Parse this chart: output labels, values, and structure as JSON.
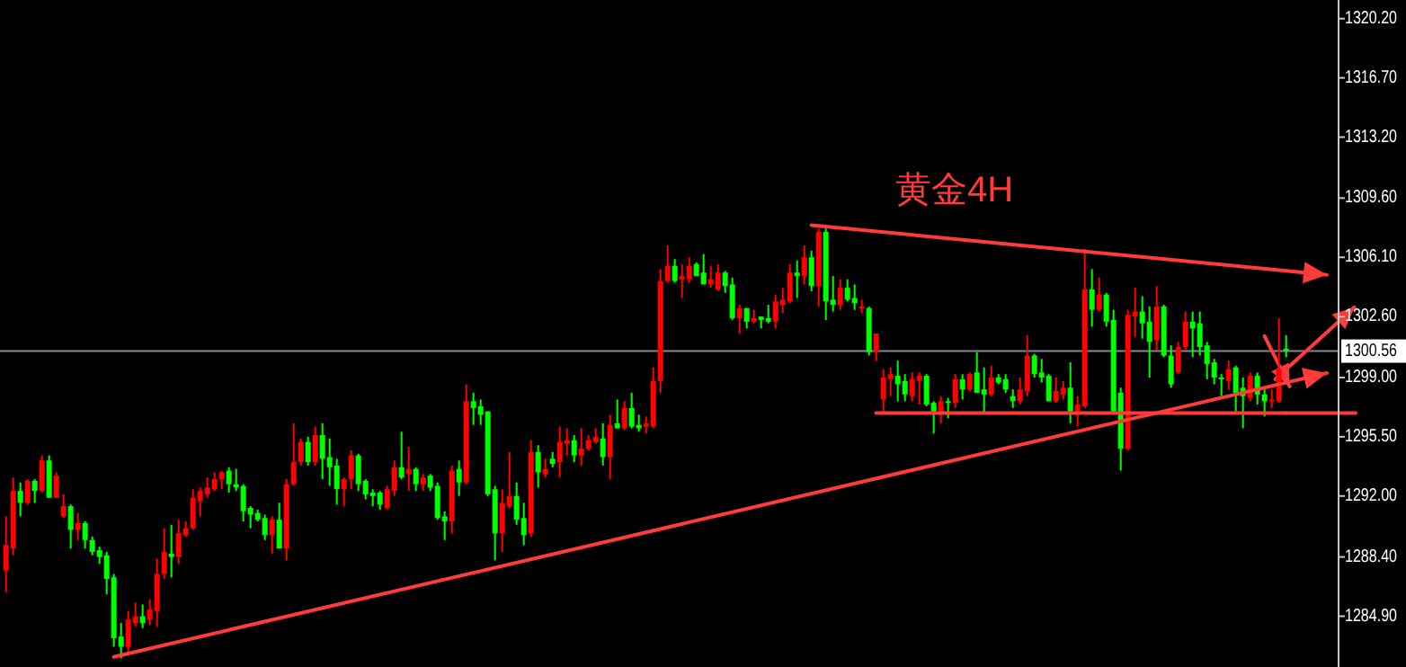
{
  "chart_data": {
    "type": "candlestick",
    "title": "黄金4H",
    "categories": [
      null,
      null,
      null,
      null,
      null,
      null,
      null,
      null,
      null,
      null,
      null,
      null,
      null,
      null,
      null,
      null,
      null,
      null,
      null,
      null,
      null,
      null,
      null,
      null,
      null,
      null,
      null,
      null,
      null,
      null,
      null,
      null,
      null,
      null,
      null,
      null,
      null,
      null,
      null,
      null,
      null,
      null,
      null,
      null,
      null,
      null,
      null,
      null,
      null,
      null,
      null,
      null,
      null,
      null,
      null,
      null,
      null,
      null,
      null,
      null,
      null,
      null,
      null,
      null,
      null,
      null,
      null,
      null,
      null,
      null,
      null,
      null,
      null,
      null,
      null,
      null,
      null,
      null,
      null,
      null,
      null,
      null,
      null,
      null,
      null,
      null,
      null,
      null,
      null,
      null,
      null,
      null,
      null,
      null,
      null,
      null,
      null,
      null,
      null,
      null,
      null,
      null,
      null,
      null,
      null,
      null,
      null,
      null,
      null,
      null,
      null,
      null,
      null,
      null,
      null,
      null,
      null,
      null,
      null,
      null,
      null,
      null,
      null,
      null,
      null,
      null,
      null,
      null,
      null,
      null,
      null,
      null,
      null,
      null,
      null,
      null,
      null,
      null,
      null,
      null,
      null,
      null,
      null,
      null,
      null,
      null,
      null,
      null,
      null,
      null,
      null,
      null,
      null,
      null,
      null,
      null,
      null,
      null,
      null,
      null,
      null,
      null,
      null,
      null,
      null,
      null,
      null,
      null,
      null,
      null,
      null,
      null,
      null,
      null,
      null,
      null,
      null,
      null,
      null
    ],
    "ohlc": [
      [
        1287.6,
        1290.8,
        1286.3,
        1289.1
      ],
      [
        1288.9,
        1293.1,
        1288.5,
        1292.3
      ],
      [
        1292.3,
        1292.8,
        1290.8,
        1291.6
      ],
      [
        1291.6,
        1293.0,
        1291.5,
        1292.9
      ],
      [
        1292.9,
        1293.0,
        1291.6,
        1292.3
      ],
      [
        1292.3,
        1294.4,
        1292.2,
        1294.1
      ],
      [
        1294.1,
        1294.4,
        1291.9,
        1291.9
      ],
      [
        1291.9,
        1293.4,
        1291.9,
        1293.2
      ],
      [
        1290.8,
        1292.1,
        1290.7,
        1291.4
      ],
      [
        1291.4,
        1291.5,
        1288.9,
        1290.0
      ],
      [
        1290.0,
        1291.0,
        1289.4,
        1290.4
      ],
      [
        1290.4,
        1290.5,
        1288.9,
        1289.4
      ],
      [
        1289.4,
        1289.6,
        1288.5,
        1288.7
      ],
      [
        1288.8,
        1289.0,
        1288.0,
        1288.4
      ],
      [
        1288.5,
        1288.7,
        1286.2,
        1287.1
      ],
      [
        1287.2,
        1287.4,
        1283.1,
        1283.6
      ],
      [
        1283.7,
        1284.5,
        1282.4,
        1283.1
      ],
      [
        1283.1,
        1285.2,
        1282.7,
        1284.7
      ],
      [
        1284.5,
        1285.7,
        1284.3,
        1284.9
      ],
      [
        1284.9,
        1285.6,
        1284.2,
        1284.5
      ],
      [
        1284.7,
        1285.9,
        1284.4,
        1285.3
      ],
      [
        1285.2,
        1288.3,
        1284.3,
        1287.4
      ],
      [
        1287.4,
        1290.1,
        1287.1,
        1288.7
      ],
      [
        1288.6,
        1290.3,
        1287.2,
        1288.4
      ],
      [
        1288.4,
        1290.6,
        1288.0,
        1289.8
      ],
      [
        1289.7,
        1290.5,
        1289.6,
        1290.1
      ],
      [
        1290.1,
        1292.4,
        1290.0,
        1291.9
      ],
      [
        1291.7,
        1292.5,
        1290.8,
        1292.3
      ],
      [
        1292.1,
        1293.1,
        1291.9,
        1292.5
      ],
      [
        1292.4,
        1293.4,
        1292.3,
        1293.0
      ],
      [
        1293.0,
        1293.5,
        1292.4,
        1293.4
      ],
      [
        1293.5,
        1293.7,
        1292.2,
        1292.7
      ],
      [
        1292.7,
        1293.6,
        1292.3,
        1292.5
      ],
      [
        1292.6,
        1292.7,
        1290.5,
        1291.1
      ],
      [
        1291.3,
        1291.4,
        1290.1,
        1290.9
      ],
      [
        1291.0,
        1291.2,
        1290.5,
        1290.6
      ],
      [
        1290.7,
        1290.9,
        1289.4,
        1289.7
      ],
      [
        1289.7,
        1290.8,
        1288.6,
        1290.6
      ],
      [
        1290.6,
        1291.6,
        1288.9,
        1288.9
      ],
      [
        1288.9,
        1293.0,
        1288.2,
        1292.7
      ],
      [
        1292.7,
        1296.3,
        1292.6,
        1294.0
      ],
      [
        1294.0,
        1295.4,
        1293.8,
        1295.2
      ],
      [
        1295.2,
        1295.5,
        1293.8,
        1294.0
      ],
      [
        1294.0,
        1296.1,
        1293.8,
        1295.6
      ],
      [
        1295.6,
        1296.3,
        1293.0,
        1294.2
      ],
      [
        1294.3,
        1295.4,
        1292.6,
        1293.7
      ],
      [
        1293.8,
        1294.2,
        1291.5,
        1292.4
      ],
      [
        1292.4,
        1293.1,
        1291.4,
        1293.0
      ],
      [
        1293.0,
        1294.7,
        1292.4,
        1294.4
      ],
      [
        1294.4,
        1294.5,
        1292.3,
        1292.7
      ],
      [
        1292.9,
        1293.0,
        1291.8,
        1292.1
      ],
      [
        1292.2,
        1292.4,
        1291.4,
        1292.0
      ],
      [
        1292.2,
        1292.3,
        1291.2,
        1291.5
      ],
      [
        1291.3,
        1292.6,
        1291.2,
        1292.4
      ],
      [
        1292.3,
        1294.1,
        1292.0,
        1293.7
      ],
      [
        1293.7,
        1295.8,
        1293.0,
        1293.1
      ],
      [
        1293.3,
        1294.9,
        1292.3,
        1293.6
      ],
      [
        1293.6,
        1293.7,
        1292.3,
        1292.7
      ],
      [
        1292.7,
        1293.3,
        1292.3,
        1293.1
      ],
      [
        1293.2,
        1293.3,
        1292.3,
        1292.5
      ],
      [
        1292.6,
        1292.8,
        1290.6,
        1290.7
      ],
      [
        1290.8,
        1291.1,
        1289.4,
        1290.5
      ],
      [
        1290.5,
        1293.8,
        1289.8,
        1293.5
      ],
      [
        1293.6,
        1294.1,
        1292.0,
        1292.8
      ],
      [
        1292.8,
        1298.6,
        1292.7,
        1297.6
      ],
      [
        1297.6,
        1298.1,
        1296.2,
        1297.2
      ],
      [
        1297.3,
        1297.7,
        1296.2,
        1296.8
      ],
      [
        1297.0,
        1297.0,
        1292.0,
        1292.1
      ],
      [
        1292.4,
        1292.6,
        1288.2,
        1289.8
      ],
      [
        1289.8,
        1292.4,
        1288.7,
        1291.6
      ],
      [
        1291.4,
        1294.6,
        1291.3,
        1292.0
      ],
      [
        1292.0,
        1292.8,
        1290.3,
        1290.6
      ],
      [
        1290.7,
        1291.6,
        1289.1,
        1289.7
      ],
      [
        1289.8,
        1295.3,
        1289.6,
        1294.6
      ],
      [
        1294.6,
        1295.0,
        1292.5,
        1293.4
      ],
      [
        1293.3,
        1294.2,
        1293.1,
        1293.6
      ],
      [
        1294.2,
        1294.6,
        1293.7,
        1293.9
      ],
      [
        1294.0,
        1296.1,
        1293.1,
        1295.2
      ],
      [
        1295.1,
        1296.0,
        1294.4,
        1295.3
      ],
      [
        1295.3,
        1295.6,
        1294.0,
        1294.4
      ],
      [
        1294.4,
        1296.0,
        1293.8,
        1294.8
      ],
      [
        1294.8,
        1295.6,
        1294.7,
        1295.3
      ],
      [
        1295.2,
        1296.0,
        1295.1,
        1295.5
      ],
      [
        1295.4,
        1296.3,
        1293.8,
        1294.3
      ],
      [
        1294.3,
        1296.8,
        1293.0,
        1296.2
      ],
      [
        1296.3,
        1297.7,
        1296.0,
        1296.0
      ],
      [
        1296.0,
        1297.6,
        1295.9,
        1297.2
      ],
      [
        1297.2,
        1298.1,
        1296.0,
        1296.1
      ],
      [
        1296.2,
        1296.8,
        1295.8,
        1296.0
      ],
      [
        1296.1,
        1296.7,
        1295.7,
        1296.3
      ],
      [
        1296.1,
        1299.6,
        1296.0,
        1298.8
      ],
      [
        1298.8,
        1305.4,
        1298.1,
        1304.7
      ],
      [
        1304.7,
        1306.8,
        1304.6,
        1305.6
      ],
      [
        1305.6,
        1306.0,
        1304.6,
        1304.7
      ],
      [
        1304.8,
        1305.7,
        1303.7,
        1305.0
      ],
      [
        1304.8,
        1306.1,
        1304.6,
        1305.6
      ],
      [
        1305.7,
        1305.8,
        1305.0,
        1305.0
      ],
      [
        1305.2,
        1306.3,
        1304.5,
        1304.5
      ],
      [
        1304.5,
        1305.6,
        1304.3,
        1304.8
      ],
      [
        1304.2,
        1305.7,
        1304.1,
        1305.2
      ],
      [
        1305.2,
        1305.3,
        1304.0,
        1304.4
      ],
      [
        1304.5,
        1304.9,
        1302.4,
        1302.5
      ],
      [
        1302.5,
        1303.3,
        1301.6,
        1303.1
      ],
      [
        1303.1,
        1303.1,
        1301.9,
        1302.3
      ],
      [
        1302.3,
        1303.0,
        1302.2,
        1302.5
      ],
      [
        1302.6,
        1302.6,
        1301.9,
        1302.4
      ],
      [
        1302.5,
        1303.3,
        1302.2,
        1302.3
      ],
      [
        1302.3,
        1303.9,
        1301.9,
        1303.5
      ],
      [
        1303.3,
        1304.3,
        1302.8,
        1303.6
      ],
      [
        1303.5,
        1305.7,
        1303.4,
        1305.2
      ],
      [
        1305.2,
        1305.9,
        1303.7,
        1305.0
      ],
      [
        1305.0,
        1306.8,
        1304.5,
        1306.1
      ],
      [
        1306.1,
        1306.5,
        1304.1,
        1304.4
      ],
      [
        1304.4,
        1307.8,
        1303.2,
        1307.6
      ],
      [
        1307.6,
        1307.8,
        1302.4,
        1303.5
      ],
      [
        1303.6,
        1305.0,
        1302.9,
        1303.3
      ],
      [
        1303.3,
        1304.8,
        1303.0,
        1304.3
      ],
      [
        1304.3,
        1304.8,
        1303.5,
        1303.6
      ],
      [
        1303.7,
        1304.5,
        1303.0,
        1303.4
      ],
      [
        1303.1,
        1303.6,
        1302.8,
        1303.2
      ],
      [
        1303.1,
        1303.2,
        1300.3,
        1300.5
      ],
      [
        1300.5,
        1301.6,
        1300.0,
        1301.6
      ],
      [
        1297.7,
        1299.5,
        1296.9,
        1299.0
      ],
      [
        1298.9,
        1299.6,
        1297.9,
        1299.2
      ],
      [
        1299.1,
        1300.0,
        1297.6,
        1298.6
      ],
      [
        1298.8,
        1299.2,
        1297.6,
        1298.0
      ],
      [
        1297.9,
        1299.3,
        1297.6,
        1298.9
      ],
      [
        1298.8,
        1299.3,
        1297.4,
        1299.1
      ],
      [
        1299.1,
        1299.2,
        1297.3,
        1297.4
      ],
      [
        1297.5,
        1297.6,
        1295.7,
        1297.0
      ],
      [
        1297.0,
        1297.9,
        1296.3,
        1297.6
      ],
      [
        1297.6,
        1297.8,
        1296.6,
        1297.5
      ],
      [
        1297.5,
        1299.2,
        1297.2,
        1298.9
      ],
      [
        1298.9,
        1299.2,
        1297.7,
        1298.3
      ],
      [
        1298.3,
        1299.3,
        1298.2,
        1299.2
      ],
      [
        1299.3,
        1300.5,
        1298.1,
        1298.1
      ],
      [
        1298.3,
        1299.6,
        1296.9,
        1298.0
      ],
      [
        1298.0,
        1299.7,
        1297.9,
        1299.0
      ],
      [
        1299.0,
        1299.2,
        1298.6,
        1298.7
      ],
      [
        1298.9,
        1299.2,
        1298.1,
        1298.3
      ],
      [
        1297.9,
        1298.3,
        1297.2,
        1297.6
      ],
      [
        1297.6,
        1299.0,
        1297.4,
        1298.3
      ],
      [
        1298.2,
        1301.5,
        1297.9,
        1300.3
      ],
      [
        1300.3,
        1300.4,
        1299.0,
        1299.2
      ],
      [
        1299.3,
        1300.1,
        1298.7,
        1299.0
      ],
      [
        1299.1,
        1299.2,
        1297.6,
        1297.6
      ],
      [
        1297.6,
        1299.0,
        1297.5,
        1298.2
      ],
      [
        1298.0,
        1298.8,
        1297.7,
        1298.4
      ],
      [
        1298.4,
        1299.9,
        1296.3,
        1297.0
      ],
      [
        1297.0,
        1297.9,
        1296.1,
        1297.4
      ],
      [
        1297.3,
        1306.6,
        1297.2,
        1304.2
      ],
      [
        1304.2,
        1305.4,
        1302.0,
        1303.0
      ],
      [
        1303.0,
        1304.9,
        1302.9,
        1303.9
      ],
      [
        1303.9,
        1304.0,
        1302.0,
        1302.3
      ],
      [
        1302.4,
        1303.0,
        1296.9,
        1297.0
      ],
      [
        1298.1,
        1298.4,
        1293.5,
        1294.8
      ],
      [
        1294.8,
        1303.0,
        1294.7,
        1302.7
      ],
      [
        1302.6,
        1304.3,
        1301.4,
        1302.9
      ],
      [
        1302.9,
        1303.8,
        1301.3,
        1302.2
      ],
      [
        1302.3,
        1303.2,
        1299.0,
        1301.1
      ],
      [
        1301.2,
        1304.4,
        1300.6,
        1303.2
      ],
      [
        1303.2,
        1303.3,
        1300.2,
        1300.3
      ],
      [
        1300.3,
        1300.9,
        1298.4,
        1298.6
      ],
      [
        1299.3,
        1301.1,
        1299.2,
        1300.8
      ],
      [
        1300.8,
        1302.9,
        1300.6,
        1302.3
      ],
      [
        1302.3,
        1302.9,
        1300.2,
        1301.9
      ],
      [
        1302.2,
        1302.9,
        1300.3,
        1300.8
      ],
      [
        1300.9,
        1301.1,
        1298.9,
        1299.8
      ],
      [
        1299.9,
        1300.1,
        1298.6,
        1299.0
      ],
      [
        1299.0,
        1299.2,
        1297.9,
        1298.9
      ],
      [
        1298.8,
        1300.0,
        1298.3,
        1299.5
      ],
      [
        1299.6,
        1299.7,
        1297.0,
        1298.1
      ],
      [
        1298.4,
        1299.0,
        1296.0,
        1297.9
      ],
      [
        1297.8,
        1299.3,
        1297.6,
        1299.1
      ],
      [
        1299.1,
        1299.3,
        1297.4,
        1298.0
      ],
      [
        1298.0,
        1298.3,
        1296.7,
        1297.6
      ],
      [
        1297.6,
        1298.3,
        1297.2,
        1297.7
      ],
      [
        1297.6,
        1302.5,
        1297.5,
        1299.5
      ],
      [
        1300.7,
        1301.5,
        1300.2,
        1300.6
      ]
    ],
    "series": [
      {
        "type": "line",
        "color": "#ff3b3b",
        "values": [
          null,
          null,
          null,
          null,
          null,
          null,
          null,
          null,
          null,
          null,
          null,
          null,
          null,
          null,
          null,
          1282.5,
          null,
          null,
          null,
          null,
          null,
          null,
          null,
          null,
          null,
          null,
          null,
          null,
          null,
          null,
          null,
          null,
          null,
          null,
          null,
          null,
          null,
          null,
          null,
          null,
          null,
          null,
          null,
          null,
          null,
          null,
          null,
          null,
          null,
          null,
          null,
          null,
          null,
          null,
          null,
          null,
          null,
          null,
          null,
          null,
          null,
          null,
          null,
          null,
          null,
          null,
          null,
          null,
          null,
          null,
          null,
          null,
          null,
          null,
          null,
          null,
          null,
          null,
          null,
          null,
          null,
          null,
          null,
          null,
          null,
          null,
          null,
          null,
          null,
          null,
          null,
          null,
          null,
          null,
          null,
          null,
          null,
          null,
          null,
          null,
          null,
          null,
          null,
          null,
          null,
          null,
          null,
          null,
          null,
          null,
          null,
          null,
          null,
          null,
          null,
          null,
          null,
          null,
          null,
          null,
          null,
          null,
          null,
          null,
          null,
          null,
          null,
          null,
          null,
          null,
          null,
          null,
          null,
          null,
          null,
          null,
          null,
          null,
          null,
          null,
          null,
          null,
          null,
          null,
          null,
          null,
          null,
          null,
          null,
          null,
          null,
          null,
          null,
          null,
          null,
          null,
          null,
          null,
          null,
          null,
          null,
          null,
          null,
          null,
          null,
          null,
          null,
          null,
          null,
          null,
          null,
          null,
          null,
          null,
          null,
          null,
          null,
          null,
          1298.7
        ]
      },
      {
        "type": "line",
        "color": "#ff3b3b",
        "values": [
          null,
          null,
          null,
          null,
          null,
          null,
          null,
          null,
          null,
          null,
          null,
          null,
          null,
          null,
          null,
          null,
          null,
          null,
          null,
          null,
          null,
          null,
          null,
          null,
          null,
          null,
          null,
          null,
          null,
          null,
          null,
          null,
          null,
          null,
          null,
          null,
          null,
          null,
          null,
          null,
          null,
          null,
          null,
          null,
          null,
          null,
          null,
          null,
          null,
          null,
          null,
          null,
          null,
          null,
          null,
          null,
          null,
          null,
          null,
          null,
          null,
          null,
          null,
          null,
          null,
          null,
          null,
          null,
          null,
          null,
          null,
          null,
          null,
          null,
          null,
          null,
          null,
          null,
          null,
          null,
          null,
          null,
          null,
          null,
          null,
          null,
          null,
          null,
          null,
          null,
          null,
          null,
          null,
          null,
          null,
          null,
          null,
          null,
          null,
          null,
          null,
          null,
          null,
          null,
          null,
          null,
          null,
          null,
          null,
          null,
          null,
          null,
          1308.0,
          null,
          null,
          null,
          null,
          null,
          null,
          null,
          null,
          null,
          null,
          null,
          null,
          null,
          null,
          null,
          null,
          null,
          null,
          null,
          null,
          null,
          null,
          null,
          null,
          null,
          null,
          null,
          null,
          null,
          null,
          null,
          null,
          null,
          null,
          null,
          null,
          null,
          null,
          null,
          null,
          null,
          null,
          null,
          null,
          null,
          null,
          null,
          null,
          null,
          null,
          null,
          null,
          null,
          null,
          null,
          null,
          null,
          null,
          null,
          null,
          null,
          null,
          null,
          null,
          null,
          1305.3
        ]
      },
      {
        "type": "line",
        "color": "#ff3b3b",
        "values": [
          null,
          null,
          null,
          null,
          null,
          null,
          null,
          null,
          null,
          null,
          null,
          null,
          null,
          null,
          null,
          null,
          null,
          null,
          null,
          null,
          null,
          null,
          null,
          null,
          null,
          null,
          null,
          null,
          null,
          null,
          null,
          null,
          null,
          null,
          null,
          null,
          null,
          null,
          null,
          null,
          null,
          null,
          null,
          null,
          null,
          null,
          null,
          null,
          null,
          null,
          null,
          null,
          null,
          null,
          null,
          null,
          null,
          null,
          null,
          null,
          null,
          null,
          null,
          null,
          null,
          null,
          null,
          null,
          null,
          null,
          null,
          null,
          null,
          null,
          null,
          null,
          null,
          null,
          null,
          null,
          null,
          null,
          null,
          null,
          null,
          null,
          null,
          null,
          null,
          null,
          null,
          null,
          null,
          null,
          null,
          null,
          null,
          null,
          null,
          null,
          null,
          null,
          null,
          null,
          null,
          null,
          null,
          null,
          null,
          null,
          null,
          null,
          null,
          null,
          null,
          null,
          null,
          null,
          null,
          null,
          null,
          1296.9,
          null,
          null,
          null,
          null,
          null,
          null,
          null,
          null,
          null,
          null,
          null,
          null,
          null,
          null,
          null,
          null,
          null,
          null,
          null,
          null,
          null,
          null,
          null,
          null,
          null,
          null,
          null,
          null,
          null,
          null,
          null,
          null,
          null,
          null,
          null,
          null,
          null,
          null,
          null,
          null,
          null,
          null,
          null,
          null,
          null,
          null,
          null,
          null,
          null,
          null,
          null,
          null,
          null,
          null,
          null,
          null,
          1296.9
        ]
      }
    ],
    "ylim": [
      1281.9,
      1321.3
    ],
    "yticks": [
      {
        "value": 1284.9,
        "label": "1284.90"
      },
      {
        "value": 1288.4,
        "label": "1288.40"
      },
      {
        "value": 1292.0,
        "label": "1292.00"
      },
      {
        "value": 1295.5,
        "label": "1295.50"
      },
      {
        "value": 1299.0,
        "label": "1299.00"
      },
      {
        "value": 1302.6,
        "label": "1302.60"
      },
      {
        "value": 1306.1,
        "label": "1306.10"
      },
      {
        "value": 1309.6,
        "label": "1309.60"
      },
      {
        "value": 1313.2,
        "label": "1313.20"
      },
      {
        "value": 1316.7,
        "label": "1316.70"
      },
      {
        "value": 1320.2,
        "label": "1320.20"
      }
    ],
    "ref_lines": [
      {
        "axis": "y",
        "value": 1300.56,
        "label": "1300.56",
        "color": "#7d8a99"
      }
    ],
    "tick_labels": "y"
  }
}
